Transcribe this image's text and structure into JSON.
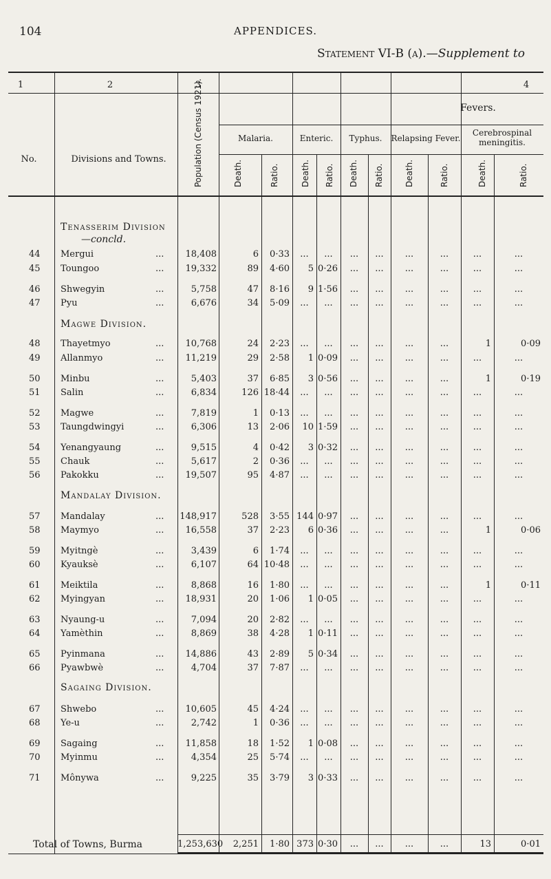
{
  "page_number": "104",
  "running_head": "APPENDICES.",
  "title": {
    "main": "Statement VI-B (a).—",
    "suffix": "Supplement to"
  },
  "column_numbers": [
    "1",
    "2",
    "3",
    "4"
  ],
  "headers": {
    "no": "No.",
    "divisions": "Divisions and Towns.",
    "population": "Population (Census 1921).",
    "fevers": "Fevers.",
    "groups": [
      "Malaria.",
      "Enteric.",
      "Typhus.",
      "Relapsing Fever.",
      "Cerebrospinal meningitis."
    ],
    "death": "Death.",
    "ratio": "Ratio."
  },
  "sections": [
    {
      "name": "Tenasserim Division",
      "sub": "—concld."
    },
    {
      "name": "Magwe Division."
    },
    {
      "name": "Mandalay Division."
    },
    {
      "name": "Sagaing Division."
    }
  ],
  "rows": [
    {
      "no": "44",
      "town": "Mergui",
      "dots": "...",
      "pop": "18,408",
      "md": "6",
      "mr": "0·33",
      "ed": "...",
      "er": "...",
      "td": "...",
      "tr": "...",
      "rd": "...",
      "rr": "...",
      "cd": "...",
      "cr": "..."
    },
    {
      "no": "45",
      "town": "Toungoo",
      "dots": "...",
      "pop": "19,332",
      "md": "89",
      "mr": "4·60",
      "ed": "5",
      "er": "0·26",
      "td": "...",
      "tr": "...",
      "rd": "...",
      "rr": "...",
      "cd": "...",
      "cr": "..."
    },
    {
      "no": "46",
      "town": "Shwegyin",
      "dots": "...",
      "pop": "5,758",
      "md": "47",
      "mr": "8·16",
      "ed": "9",
      "er": "1·56",
      "td": "...",
      "tr": "...",
      "rd": "...",
      "rr": "...",
      "cd": "...",
      "cr": "..."
    },
    {
      "no": "47",
      "town": "Pyu",
      "dots": "...",
      "pop": "6,676",
      "md": "34",
      "mr": "5·09",
      "ed": "...",
      "er": "...",
      "td": "...",
      "tr": "...",
      "rd": "...",
      "rr": "...",
      "cd": "...",
      "cr": "..."
    },
    {
      "no": "48",
      "town": "Thayetmyo",
      "dots": "...",
      "pop": "10,768",
      "md": "24",
      "mr": "2·23",
      "ed": "...",
      "er": "...",
      "td": "...",
      "tr": "...",
      "rd": "...",
      "rr": "...",
      "cd": "1",
      "cr": "0·09"
    },
    {
      "no": "49",
      "town": "Allanmyo",
      "dots": "...",
      "pop": "11,219",
      "md": "29",
      "mr": "2·58",
      "ed": "1",
      "er": "0·09",
      "td": "...",
      "tr": "...",
      "rd": "...",
      "rr": "...",
      "cd": "...",
      "cr": "..."
    },
    {
      "no": "50",
      "town": "Minbu",
      "dots": "...",
      "pop": "5,403",
      "md": "37",
      "mr": "6·85",
      "ed": "3",
      "er": "0·56",
      "td": "...",
      "tr": "...",
      "rd": "...",
      "rr": "...",
      "cd": "1",
      "cr": "0·19"
    },
    {
      "no": "51",
      "town": "Salin",
      "dots": "...",
      "pop": "6,834",
      "md": "126",
      "mr": "18·44",
      "ed": "...",
      "er": "...",
      "td": "...",
      "tr": "...",
      "rd": "...",
      "rr": "...",
      "cd": "...",
      "cr": "..."
    },
    {
      "no": "52",
      "town": "Magwe",
      "dots": "...",
      "pop": "7,819",
      "md": "1",
      "mr": "0·13",
      "ed": "...",
      "er": "...",
      "td": "...",
      "tr": "...",
      "rd": "...",
      "rr": "...",
      "cd": "...",
      "cr": "..."
    },
    {
      "no": "53",
      "town": "Taungdwingyi",
      "dots": "...",
      "pop": "6,306",
      "md": "13",
      "mr": "2·06",
      "ed": "10",
      "er": "1·59",
      "td": "...",
      "tr": "...",
      "rd": "...",
      "rr": "...",
      "cd": "...",
      "cr": "..."
    },
    {
      "no": "54",
      "town": "Yenangyaung",
      "dots": "...",
      "pop": "9,515",
      "md": "4",
      "mr": "0·42",
      "ed": "3",
      "er": "0·32",
      "td": "...",
      "tr": "...",
      "rd": "...",
      "rr": "...",
      "cd": "...",
      "cr": "..."
    },
    {
      "no": "55",
      "town": "Chauk",
      "dots": "...",
      "pop": "5,617",
      "md": "2",
      "mr": "0·36",
      "ed": "...",
      "er": "...",
      "td": "...",
      "tr": "...",
      "rd": "...",
      "rr": "...",
      "cd": "...",
      "cr": "..."
    },
    {
      "no": "56",
      "town": "Pakokku",
      "dots": "...",
      "pop": "19,507",
      "md": "95",
      "mr": "4·87",
      "ed": "...",
      "er": "...",
      "td": "...",
      "tr": "...",
      "rd": "...",
      "rr": "...",
      "cd": "...",
      "cr": "..."
    },
    {
      "no": "57",
      "town": "Mandalay",
      "dots": "...",
      "pop": "148,917",
      "md": "528",
      "mr": "3·55",
      "ed": "144",
      "er": "0·97",
      "td": "...",
      "tr": "...",
      "rd": "...",
      "rr": "...",
      "cd": "...",
      "cr": "..."
    },
    {
      "no": "58",
      "town": "Maymyo",
      "dots": "...",
      "pop": "16,558",
      "md": "37",
      "mr": "2·23",
      "ed": "6",
      "er": "0·36",
      "td": "...",
      "tr": "...",
      "rd": "...",
      "rr": "...",
      "cd": "1",
      "cr": "0·06"
    },
    {
      "no": "59",
      "town": "Myitngè",
      "dots": "...",
      "pop": "3,439",
      "md": "6",
      "mr": "1·74",
      "ed": "...",
      "er": "...",
      "td": "...",
      "tr": "...",
      "rd": "...",
      "rr": "...",
      "cd": "...",
      "cr": "..."
    },
    {
      "no": "60",
      "town": "Kyauksè",
      "dots": "...",
      "pop": "6,107",
      "md": "64",
      "mr": "10·48",
      "ed": "...",
      "er": "...",
      "td": "...",
      "tr": "...",
      "rd": "...",
      "rr": "...",
      "cd": "...",
      "cr": "..."
    },
    {
      "no": "61",
      "town": "Meiktila",
      "dots": "...",
      "pop": "8,868",
      "md": "16",
      "mr": "1·80",
      "ed": "...",
      "er": "...",
      "td": "...",
      "tr": "...",
      "rd": "...",
      "rr": "...",
      "cd": "1",
      "cr": "0·11"
    },
    {
      "no": "62",
      "town": "Myingyan",
      "dots": "...",
      "pop": "18,931",
      "md": "20",
      "mr": "1·06",
      "ed": "1",
      "er": "0·05",
      "td": "...",
      "tr": "...",
      "rd": "...",
      "rr": "...",
      "cd": "...",
      "cr": "..."
    },
    {
      "no": "63",
      "town": "Nyaung-u",
      "dots": "...",
      "pop": "7,094",
      "md": "20",
      "mr": "2·82",
      "ed": "...",
      "er": "...",
      "td": "...",
      "tr": "...",
      "rd": "...",
      "rr": "...",
      "cd": "...",
      "cr": "..."
    },
    {
      "no": "64",
      "town": "Yamèthin",
      "dots": "...",
      "pop": "8,869",
      "md": "38",
      "mr": "4·28",
      "ed": "1",
      "er": "0·11",
      "td": "...",
      "tr": "...",
      "rd": "...",
      "rr": "...",
      "cd": "...",
      "cr": "..."
    },
    {
      "no": "65",
      "town": "Pyinmana",
      "dots": "...",
      "pop": "14,886",
      "md": "43",
      "mr": "2·89",
      "ed": "5",
      "er": "0·34",
      "td": "...",
      "tr": "...",
      "rd": "...",
      "rr": "...",
      "cd": "...",
      "cr": "..."
    },
    {
      "no": "66",
      "town": "Pyawbwè",
      "dots": "...",
      "pop": "4,704",
      "md": "37",
      "mr": "7·87",
      "ed": "...",
      "er": "...",
      "td": "...",
      "tr": "...",
      "rd": "...",
      "rr": "...",
      "cd": "...",
      "cr": "..."
    },
    {
      "no": "67",
      "town": "Shwebo",
      "dots": "...",
      "pop": "10,605",
      "md": "45",
      "mr": "4·24",
      "ed": "...",
      "er": "...",
      "td": "...",
      "tr": "...",
      "rd": "...",
      "rr": "...",
      "cd": "...",
      "cr": "..."
    },
    {
      "no": "68",
      "town": "Ye-u",
      "dots": "...",
      "pop": "2,742",
      "md": "1",
      "mr": "0·36",
      "ed": "...",
      "er": "...",
      "td": "...",
      "tr": "...",
      "rd": "...",
      "rr": "...",
      "cd": "...",
      "cr": "..."
    },
    {
      "no": "69",
      "town": "Sagaing",
      "dots": "...",
      "pop": "11,858",
      "md": "18",
      "mr": "1·52",
      "ed": "1",
      "er": "0·08",
      "td": "...",
      "tr": "...",
      "rd": "...",
      "rr": "...",
      "cd": "...",
      "cr": "..."
    },
    {
      "no": "70",
      "town": "Myinmu",
      "dots": "...",
      "pop": "4,354",
      "md": "25",
      "mr": "5·74",
      "ed": "...",
      "er": "...",
      "td": "...",
      "tr": "...",
      "rd": "...",
      "rr": "...",
      "cd": "...",
      "cr": "..."
    },
    {
      "no": "71",
      "town": "Mônywa",
      "dots": "...",
      "pop": "9,225",
      "md": "35",
      "mr": "3·79",
      "ed": "3",
      "er": "0·33",
      "td": "...",
      "tr": "...",
      "rd": "...",
      "rr": "...",
      "cd": "...",
      "cr": "..."
    }
  ],
  "total": {
    "label": "Total of Towns, Burma",
    "pop": "1,253,630",
    "md": "2,251",
    "mr": "1·80",
    "ed": "373",
    "er": "0·30",
    "td": "...",
    "tr": "...",
    "rd": "...",
    "rr": "...",
    "cd": "13",
    "cr": "0·01"
  }
}
